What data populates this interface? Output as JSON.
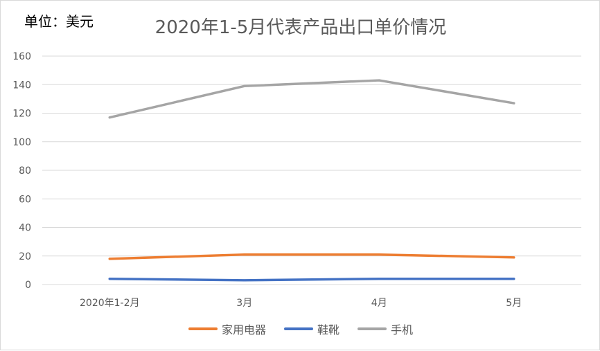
{
  "unit_label": "单位：美元",
  "chart_data": {
    "type": "line",
    "title": "2020年1-5月代表产品出口单价情况",
    "categories": [
      "2020年1-2月",
      "3月",
      "4月",
      "5月"
    ],
    "ylim": [
      0,
      160
    ],
    "yticks": [
      0,
      20,
      40,
      60,
      80,
      100,
      120,
      140,
      160
    ],
    "grid": true,
    "legend_position": "bottom",
    "series": [
      {
        "name": "家用电器",
        "color": "#ED7D31",
        "values": [
          18,
          21,
          21,
          19
        ]
      },
      {
        "name": "鞋靴",
        "color": "#4472C4",
        "values": [
          4,
          3,
          4,
          4
        ]
      },
      {
        "name": "手机",
        "color": "#A5A5A5",
        "values": [
          117,
          139,
          143,
          127
        ]
      }
    ]
  }
}
